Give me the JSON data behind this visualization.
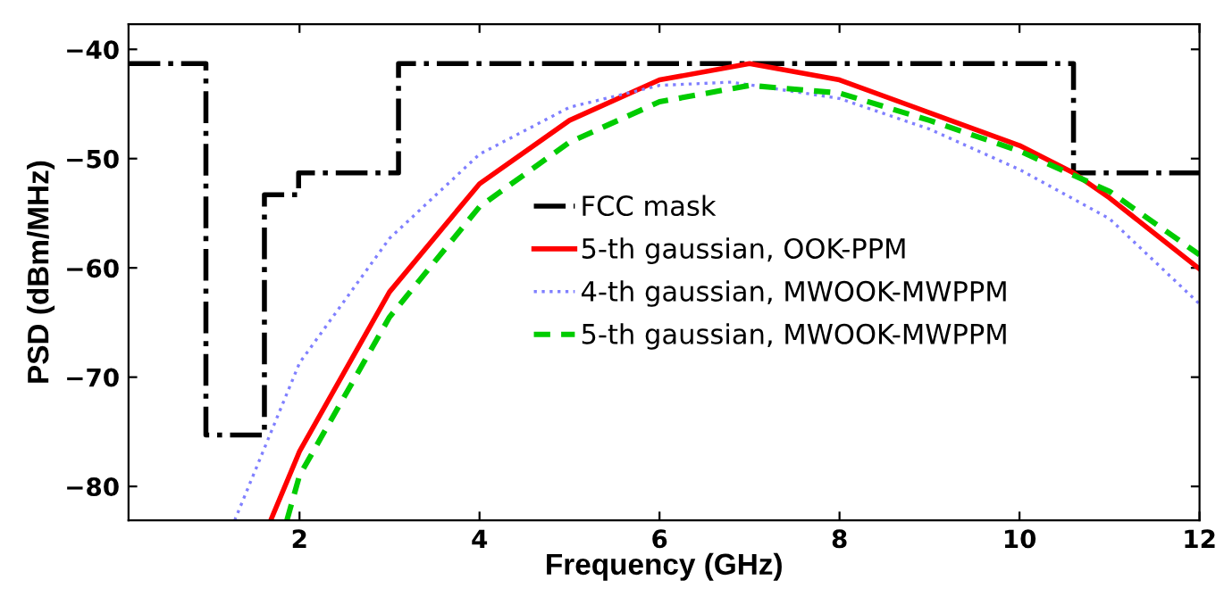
{
  "chart_data": {
    "type": "line",
    "xlabel": "Frequency (GHz)",
    "ylabel": "PSD (dBm/MHz)",
    "xlim": [
      0.1,
      12
    ],
    "ylim": [
      -83.1,
      -37.7
    ],
    "xticks": [
      2,
      4,
      6,
      8,
      10,
      12
    ],
    "yticks": [
      -80,
      -70,
      -60,
      -50,
      -40
    ],
    "grid": false,
    "legend": "center",
    "series": [
      {
        "name": "FCC mask",
        "type": "step",
        "color": "#000000",
        "line_style": "dashdot",
        "x": [
          0.1,
          0.96,
          1.61,
          1.99,
          3.1,
          10.6,
          12
        ],
        "values": [
          -41.3,
          -75.3,
          -53.3,
          -51.3,
          -41.3,
          -51.3,
          -51.3
        ]
      },
      {
        "name": "5-th gaussian, OOK-PPM",
        "color": "#ff0000",
        "line_style": "solid",
        "x": [
          1.68,
          2,
          3,
          4,
          5,
          6,
          7,
          8,
          9,
          10,
          10.6,
          11,
          12
        ],
        "values": [
          -83.1,
          -76.8,
          -62.2,
          -52.3,
          -46.5,
          -42.8,
          -41.3,
          -42.8,
          -45.8,
          -48.8,
          -51.3,
          -53.6,
          -60.1
        ]
      },
      {
        "name": "4-th gaussian, MWOOK-MWPPM",
        "color": "#8080ff",
        "line_style": "dotted",
        "x": [
          1.28,
          2,
          3,
          4,
          5,
          6,
          6.8,
          8,
          9,
          10,
          11,
          12
        ],
        "values": [
          -83.1,
          -68.7,
          -57.3,
          -49.6,
          -45.3,
          -43.3,
          -43.0,
          -44.5,
          -47.3,
          -51.0,
          -55.5,
          -63.3
        ]
      },
      {
        "name": "5-th gaussian, MWOOK-MWPPM",
        "color": "#00cc00",
        "line_style": "dashed",
        "x": [
          1.86,
          2,
          3,
          4,
          5,
          6,
          7,
          8,
          9,
          10,
          11,
          12
        ],
        "values": [
          -83.1,
          -79.0,
          -64.5,
          -54.4,
          -48.5,
          -44.8,
          -43.3,
          -44.0,
          -46.5,
          -49.3,
          -53.0,
          -58.8
        ]
      }
    ]
  }
}
